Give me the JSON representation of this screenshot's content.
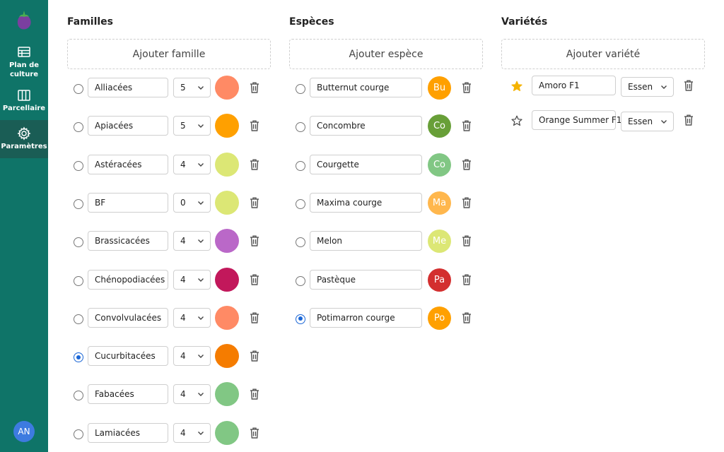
{
  "sidebar": {
    "items": [
      {
        "label": "Plan de culture",
        "icon": "table-icon"
      },
      {
        "label": "Parcellaire",
        "icon": "columns-icon"
      },
      {
        "label": "Paramètres",
        "icon": "gear-icon"
      }
    ],
    "avatar": "AN"
  },
  "familles": {
    "title": "Familles",
    "add_label": "Ajouter famille",
    "rows": [
      {
        "name": "Alliacées",
        "value": "5",
        "color": "#ff8a65",
        "checked": false
      },
      {
        "name": "Apiacées",
        "value": "5",
        "color": "#ffa000",
        "checked": false
      },
      {
        "name": "Astéracées",
        "value": "4",
        "color": "#dce775",
        "checked": false
      },
      {
        "name": "BF",
        "value": "0",
        "color": "#dce775",
        "checked": false
      },
      {
        "name": "Brassicacées",
        "value": "4",
        "color": "#ba68c8",
        "checked": false
      },
      {
        "name": "Chénopodiacées",
        "value": "4",
        "color": "#c2185b",
        "checked": false
      },
      {
        "name": "Convolvulacées",
        "value": "4",
        "color": "#ff8a65",
        "checked": false
      },
      {
        "name": "Cucurbitacées",
        "value": "4",
        "color": "#f57c00",
        "checked": true
      },
      {
        "name": "Fabacées",
        "value": "4",
        "color": "#81c784",
        "checked": false
      },
      {
        "name": "Lamiacées",
        "value": "4",
        "color": "#81c784",
        "checked": false
      }
    ]
  },
  "especes": {
    "title": "Espèces",
    "add_label": "Ajouter espèce",
    "rows": [
      {
        "name": "Butternut courge",
        "abbr": "Bu",
        "color": "#ffa000",
        "checked": false
      },
      {
        "name": "Concombre",
        "abbr": "Co",
        "color": "#689f38",
        "checked": false
      },
      {
        "name": "Courgette",
        "abbr": "Co",
        "color": "#81c784",
        "checked": false
      },
      {
        "name": "Maxima courge",
        "abbr": "Ma",
        "color": "#ffb74d",
        "checked": false
      },
      {
        "name": "Melon",
        "abbr": "Me",
        "color": "#dce775",
        "checked": false
      },
      {
        "name": "Pastèque",
        "abbr": "Pa",
        "color": "#d32f2f",
        "checked": false
      },
      {
        "name": "Potimarron courge",
        "abbr": "Po",
        "color": "#ffa000",
        "checked": true
      }
    ]
  },
  "varietes": {
    "title": "Variétés",
    "add_label": "Ajouter variété",
    "rows": [
      {
        "name": "Amoro F1",
        "type": "Essen",
        "starred": true
      },
      {
        "name": "Orange Summer F1",
        "type": "Essen",
        "starred": false
      }
    ]
  },
  "colors": {
    "sidebar": "#0f7468",
    "sidebar_active": "#1a5d55",
    "radio_checked": "#1a66d6",
    "star": "#f5b301"
  }
}
